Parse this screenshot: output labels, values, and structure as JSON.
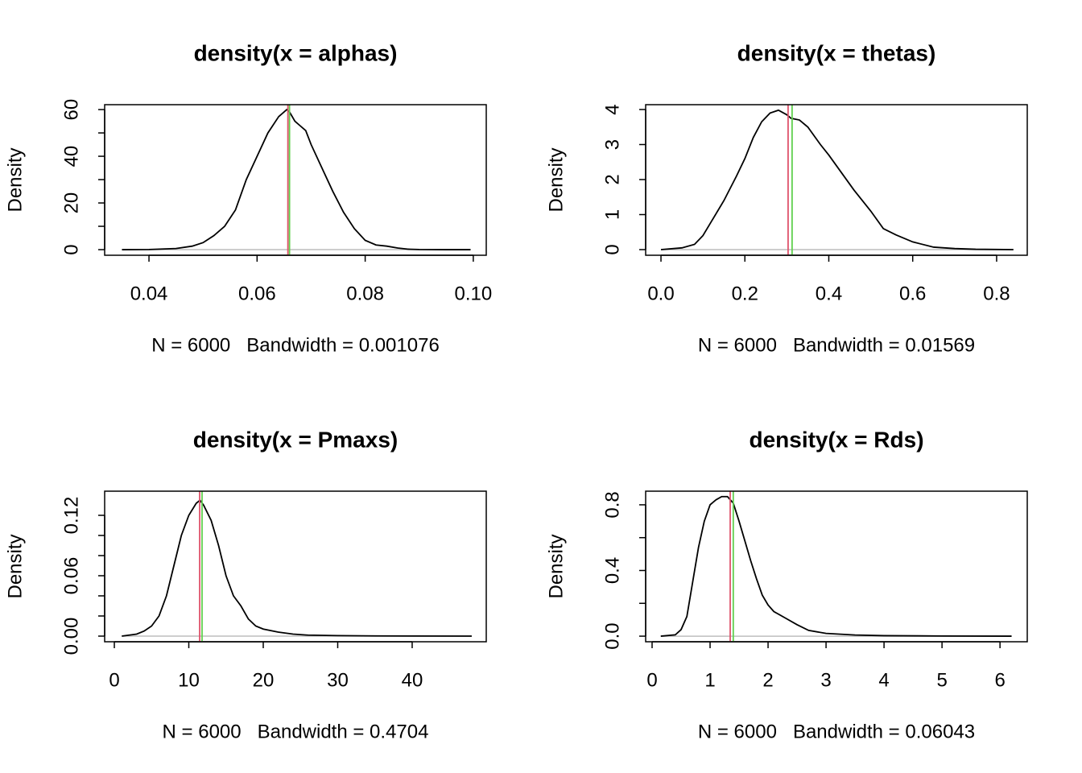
{
  "chart_data": [
    {
      "type": "line",
      "title": "density(x = alphas)",
      "xlabel": "N = 6000   Bandwidth = 0.001076",
      "ylabel": "Density",
      "x": [
        0.035,
        0.04,
        0.045,
        0.048,
        0.05,
        0.052,
        0.054,
        0.056,
        0.058,
        0.06,
        0.062,
        0.064,
        0.0655,
        0.066,
        0.067,
        0.068,
        0.069,
        0.07,
        0.072,
        0.074,
        0.076,
        0.078,
        0.08,
        0.082,
        0.084,
        0.086,
        0.088,
        0.09,
        0.095,
        0.0995
      ],
      "series": [
        {
          "color": "#000000",
          "values": [
            0,
            0.05,
            0.5,
            1.5,
            3,
            6,
            10,
            17,
            30,
            40,
            50,
            57,
            60,
            59,
            55,
            53,
            51,
            45,
            35,
            25,
            16,
            9,
            4,
            2,
            1.5,
            0.7,
            0.2,
            0.05,
            0,
            0
          ]
        }
      ],
      "vlines": [
        {
          "value": 0.0657,
          "color": "#DF536B"
        },
        {
          "value": 0.066,
          "color": "#61D04F"
        }
      ],
      "xlim": [
        0.0318,
        0.1024
      ],
      "ylim": [
        -2.4,
        62.1
      ],
      "xticks": [
        0.04,
        0.06,
        0.08,
        {
          "value": 0.1,
          "label": "0.10"
        }
      ],
      "yticks": [
        0,
        {
          "value": 10,
          "label": null
        },
        20,
        {
          "value": 30,
          "label": null
        },
        40,
        {
          "value": 50,
          "label": null
        },
        60
      ]
    },
    {
      "type": "line",
      "title": "density(x = thetas)",
      "xlabel": "N = 6000   Bandwidth = 0.01569",
      "ylabel": "Density",
      "x": [
        0,
        0.05,
        0.08,
        0.1,
        0.12,
        0.15,
        0.18,
        0.2,
        0.22,
        0.24,
        0.26,
        0.28,
        0.3,
        0.31,
        0.33,
        0.35,
        0.38,
        0.4,
        0.43,
        0.46,
        0.5,
        0.53,
        0.56,
        0.6,
        0.65,
        0.7,
        0.75,
        0.84
      ],
      "series": [
        {
          "color": "#000000",
          "values": [
            0,
            0.05,
            0.15,
            0.4,
            0.8,
            1.4,
            2.1,
            2.6,
            3.2,
            3.65,
            3.9,
            3.98,
            3.85,
            3.75,
            3.7,
            3.5,
            3.0,
            2.7,
            2.2,
            1.7,
            1.1,
            0.6,
            0.42,
            0.22,
            0.07,
            0.03,
            0.01,
            0
          ]
        }
      ],
      "vlines": [
        {
          "value": 0.303,
          "color": "#DF536B"
        },
        {
          "value": 0.3125,
          "color": "#61D04F"
        }
      ],
      "xlim": [
        -0.0365,
        0.873
      ],
      "ylim": [
        -0.161,
        4.138
      ],
      "xticks": [
        {
          "value": 0,
          "label": "0.0"
        },
        0.2,
        0.4,
        0.6,
        0.8
      ],
      "yticks": [
        0,
        1,
        2,
        3,
        4
      ]
    },
    {
      "type": "line",
      "title": "density(x = Pmaxs)",
      "xlabel": "N = 6000   Bandwidth = 0.4704",
      "ylabel": "Density",
      "x": [
        1,
        3,
        4,
        5,
        6,
        7,
        8,
        9,
        10,
        11,
        11.5,
        12,
        13,
        14,
        15,
        16,
        17,
        18,
        19,
        20,
        22,
        24,
        26,
        30,
        35,
        40,
        48
      ],
      "series": [
        {
          "color": "#000000",
          "values": [
            0,
            0.002,
            0.005,
            0.01,
            0.02,
            0.04,
            0.07,
            0.1,
            0.12,
            0.132,
            0.135,
            0.13,
            0.115,
            0.09,
            0.06,
            0.04,
            0.03,
            0.017,
            0.01,
            0.007,
            0.004,
            0.002,
            0.001,
            0.0005,
            0.0002,
            0.0001,
            0
          ]
        }
      ],
      "vlines": [
        {
          "value": 11.46,
          "color": "#DF536B"
        },
        {
          "value": 11.78,
          "color": "#61D04F"
        }
      ],
      "xlim": [
        -1.3,
        49.95
      ],
      "ylim": [
        -0.0056,
        0.144
      ],
      "xticks": [
        0,
        10,
        20,
        30,
        40
      ],
      "yticks": [
        {
          "value": 0,
          "label": "0.00"
        },
        {
          "value": 0.02,
          "label": null
        },
        {
          "value": 0.04,
          "label": null
        },
        0.06,
        {
          "value": 0.08,
          "label": null
        },
        {
          "value": 0.1,
          "label": null
        },
        0.12
      ]
    },
    {
      "type": "line",
      "title": "density(x = Rds)",
      "xlabel": "N = 6000   Bandwidth = 0.06043",
      "ylabel": "Density",
      "x": [
        0.15,
        0.4,
        0.5,
        0.6,
        0.7,
        0.8,
        0.9,
        1.0,
        1.1,
        1.2,
        1.3,
        1.4,
        1.5,
        1.6,
        1.7,
        1.8,
        1.9,
        2.0,
        2.1,
        2.3,
        2.5,
        2.7,
        3.0,
        3.5,
        4,
        5,
        6.2
      ],
      "series": [
        {
          "color": "#000000",
          "values": [
            0,
            0.008,
            0.04,
            0.12,
            0.33,
            0.54,
            0.7,
            0.8,
            0.83,
            0.85,
            0.85,
            0.81,
            0.7,
            0.58,
            0.46,
            0.35,
            0.25,
            0.19,
            0.15,
            0.11,
            0.07,
            0.035,
            0.017,
            0.007,
            0.003,
            0.001,
            0
          ]
        }
      ],
      "vlines": [
        {
          "value": 1.347,
          "color": "#DF536B"
        },
        {
          "value": 1.4,
          "color": "#61D04F"
        }
      ],
      "xlim": [
        -0.111,
        6.47
      ],
      "ylim": [
        -0.034,
        0.883
      ],
      "xticks": [
        0,
        1,
        2,
        3,
        4,
        5,
        6
      ],
      "yticks": [
        {
          "value": 0,
          "label": "0.0"
        },
        {
          "value": 0.2,
          "label": null
        },
        0.4,
        {
          "value": 0.6,
          "label": null
        },
        0.8
      ]
    }
  ]
}
